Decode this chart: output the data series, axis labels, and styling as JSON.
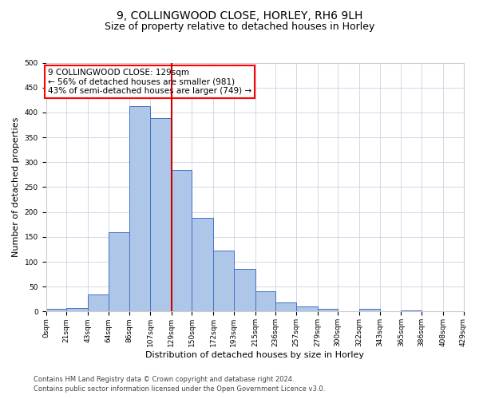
{
  "title1": "9, COLLINGWOOD CLOSE, HORLEY, RH6 9LH",
  "title2": "Size of property relative to detached houses in Horley",
  "xlabel": "Distribution of detached houses by size in Horley",
  "ylabel": "Number of detached properties",
  "annotation_line1": "9 COLLINGWOOD CLOSE: 129sqm",
  "annotation_line2": "← 56% of detached houses are smaller (981)",
  "annotation_line3": "43% of semi-detached houses are larger (749) →",
  "property_size": 129,
  "bin_edges": [
    0,
    21,
    43,
    64,
    86,
    107,
    129,
    150,
    172,
    193,
    215,
    236,
    257,
    279,
    300,
    322,
    343,
    365,
    386,
    408,
    429
  ],
  "bar_heights": [
    5,
    7,
    35,
    160,
    412,
    388,
    285,
    188,
    122,
    85,
    40,
    19,
    11,
    6,
    0,
    5,
    0,
    2,
    0,
    0
  ],
  "bar_color": "#aec6e8",
  "bar_edge_color": "#4472c4",
  "vline_color": "#cc0000",
  "vline_x": 129,
  "background_color": "#ffffff",
  "grid_color": "#d0d8e8",
  "ylim": [
    0,
    500
  ],
  "yticks": [
    0,
    50,
    100,
    150,
    200,
    250,
    300,
    350,
    400,
    450,
    500
  ],
  "footnote1": "Contains HM Land Registry data © Crown copyright and database right 2024.",
  "footnote2": "Contains public sector information licensed under the Open Government Licence v3.0.",
  "title1_fontsize": 10,
  "title2_fontsize": 9,
  "xlabel_fontsize": 8,
  "ylabel_fontsize": 8,
  "tick_fontsize": 6.5,
  "annotation_fontsize": 7.5,
  "footnote_fontsize": 6
}
